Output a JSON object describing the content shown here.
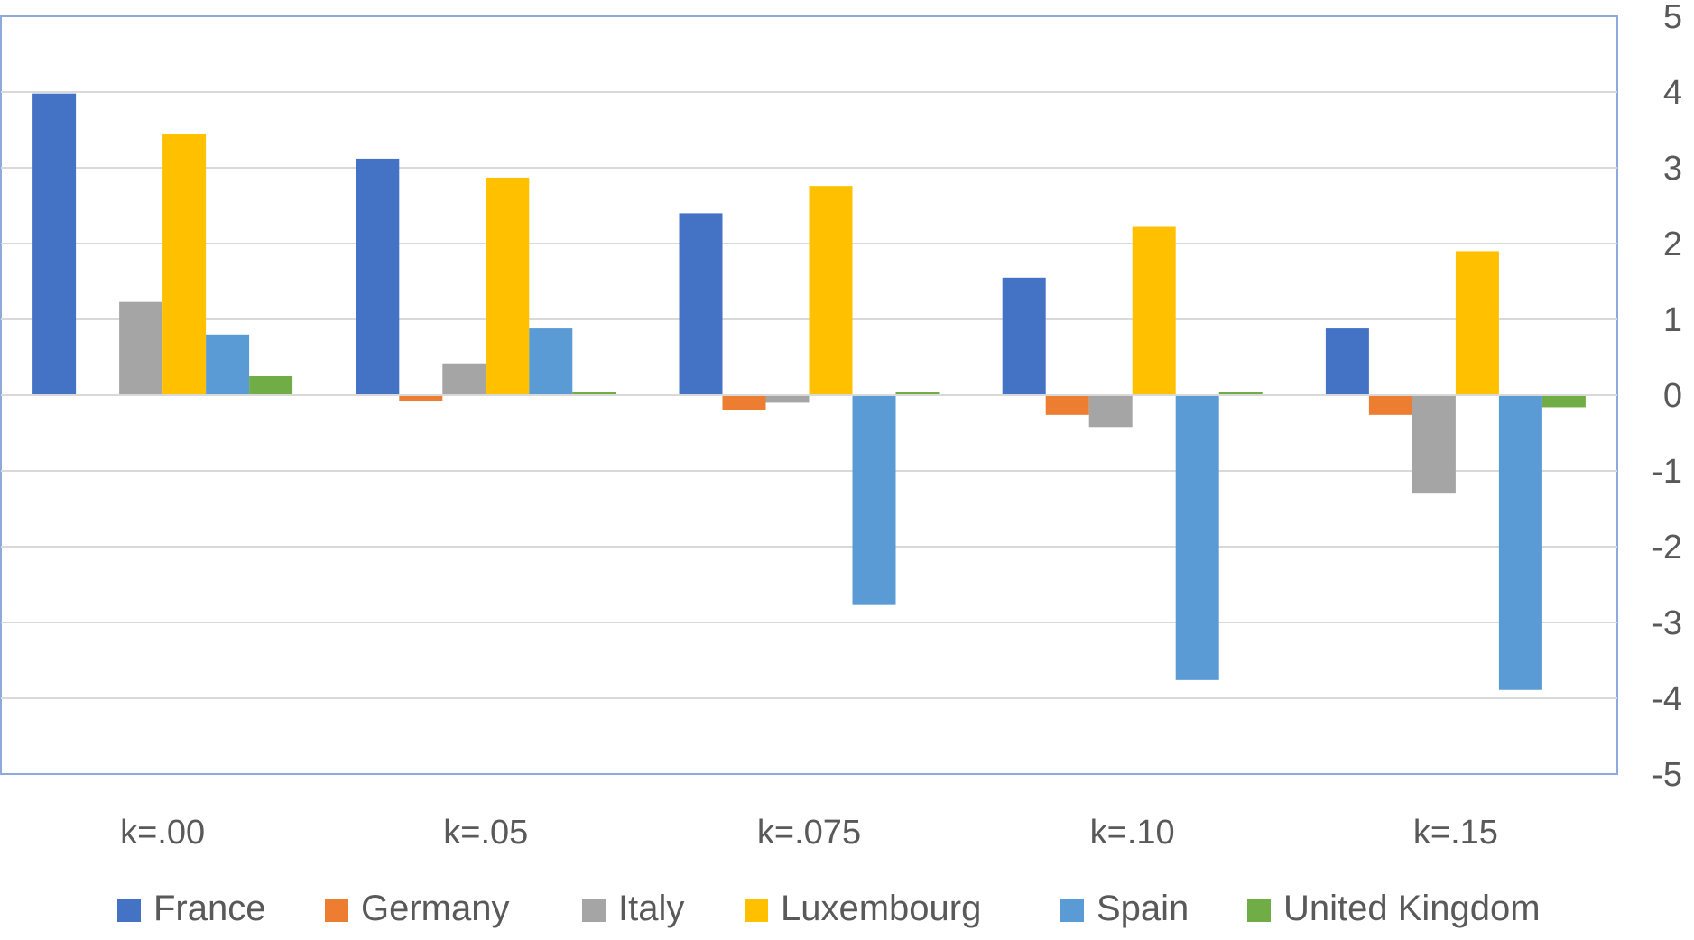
{
  "chart_data": {
    "type": "bar",
    "categories": [
      "k=.00",
      "k=.05",
      "k=.075",
      "k=.10",
      "k=.15"
    ],
    "series": [
      {
        "name": "France",
        "color": "#4472C4",
        "values": [
          3.98,
          3.12,
          2.4,
          1.55,
          0.88
        ]
      },
      {
        "name": "Germany",
        "color": "#ED7D31",
        "values": [
          0.0,
          -0.08,
          -0.2,
          -0.26,
          -0.26
        ]
      },
      {
        "name": "Italy",
        "color": "#A5A5A5",
        "values": [
          1.23,
          0.42,
          -0.1,
          -0.42,
          -1.3
        ]
      },
      {
        "name": "Luxembourg",
        "color": "#FFC000",
        "values": [
          3.45,
          2.87,
          2.76,
          2.22,
          1.9
        ]
      },
      {
        "name": "Spain",
        "color": "#5B9BD5",
        "values": [
          0.8,
          0.88,
          -2.77,
          -3.76,
          -3.89
        ]
      },
      {
        "name": "United Kingdom",
        "color": "#70AD47",
        "values": [
          0.25,
          0.04,
          0.04,
          0.04,
          -0.16
        ]
      }
    ],
    "y_ticks": [
      "5",
      "4",
      "3",
      "2",
      "1",
      "0",
      "-1",
      "-2",
      "-3",
      "-4",
      "-5"
    ],
    "ylim": [
      -5,
      5
    ],
    "y_axis_side": "right",
    "grid": true,
    "legend_position": "bottom",
    "title": "",
    "xlabel": "",
    "ylabel": ""
  }
}
